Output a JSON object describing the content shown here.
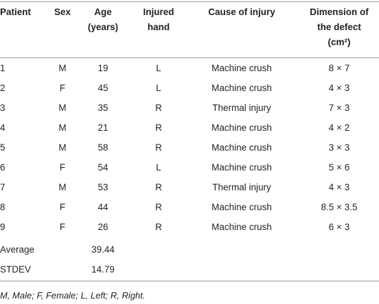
{
  "table": {
    "header": [
      [
        "Patient"
      ],
      [
        "Sex"
      ],
      [
        "Age",
        "(years)"
      ],
      [
        "Injured",
        "hand"
      ],
      [
        "Cause of injury"
      ],
      [
        "Dimension of",
        "the defect",
        "(cm²)"
      ]
    ],
    "rows": [
      [
        1,
        "M",
        19,
        "L",
        "Machine crush",
        "8 × 7"
      ],
      [
        2,
        "F",
        45,
        "L",
        "Machine crush",
        "4 × 3"
      ],
      [
        3,
        "M",
        35,
        "R",
        "Thermal injury",
        "7 × 3"
      ],
      [
        4,
        "M",
        21,
        "R",
        "Machine crush",
        "4 × 2"
      ],
      [
        5,
        "M",
        58,
        "R",
        "Machine crush",
        "3 × 3"
      ],
      [
        6,
        "F",
        54,
        "L",
        "Machine crush",
        "5 × 6"
      ],
      [
        7,
        "M",
        53,
        "R",
        "Thermal injury",
        "4 × 3"
      ],
      [
        8,
        "F",
        44,
        "R",
        "Machine crush",
        "8.5 × 3.5"
      ],
      [
        9,
        "F",
        26,
        "R",
        "Machine crush",
        "6 × 3"
      ]
    ],
    "summary": [
      {
        "label": "Average",
        "age": "39.44"
      },
      {
        "label": "STDEV",
        "age": "14.79"
      }
    ]
  },
  "footnote": "M, Male; F, Female; L, Left; R, Right."
}
